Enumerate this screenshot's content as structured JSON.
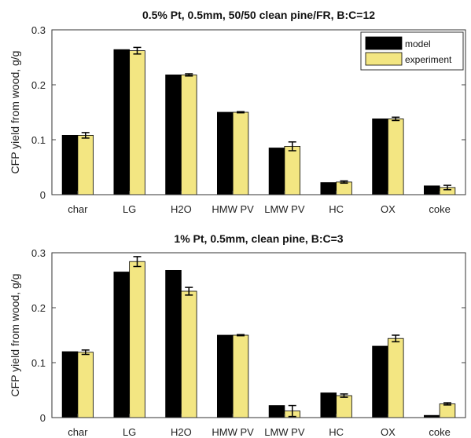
{
  "chart_data": [
    {
      "type": "bar",
      "title": "0.5% Pt, 0.5mm, 50/50 clean pine/FR, B:C=12",
      "ylabel": "CFP yield from wood, g/g",
      "xlabel": "",
      "ylim": [
        0,
        0.3
      ],
      "yticks": [
        "0",
        "0.1",
        "0.2",
        "0.3"
      ],
      "categories": [
        "char",
        "LG",
        "H2O",
        "HMW PV",
        "LMW PV",
        "HC",
        "OX",
        "coke"
      ],
      "legend_position": "top-right",
      "series": [
        {
          "name": "model",
          "color": "#000000",
          "values": [
            0.108,
            0.264,
            0.218,
            0.15,
            0.085,
            0.022,
            0.138,
            0.016
          ]
        },
        {
          "name": "experiment",
          "color": "#f3e682",
          "values": [
            0.108,
            0.262,
            0.218,
            0.15,
            0.088,
            0.023,
            0.138,
            0.013
          ],
          "errors": [
            0.005,
            0.006,
            0.002,
            0.001,
            0.008,
            0.002,
            0.003,
            0.004
          ]
        }
      ]
    },
    {
      "type": "bar",
      "title": "1% Pt, 0.5mm, clean pine, B:C=3",
      "ylabel": "CFP yield from wood, g/g",
      "xlabel": "",
      "ylim": [
        0,
        0.3
      ],
      "yticks": [
        "0",
        "0.1",
        "0.2",
        "0.3"
      ],
      "categories": [
        "char",
        "LG",
        "H2O",
        "HMW PV",
        "LMW PV",
        "HC",
        "OX",
        "coke"
      ],
      "series": [
        {
          "name": "model",
          "color": "#000000",
          "values": [
            0.12,
            0.265,
            0.268,
            0.15,
            0.022,
            0.045,
            0.13,
            0.004
          ]
        },
        {
          "name": "experiment",
          "color": "#f3e682",
          "values": [
            0.119,
            0.284,
            0.23,
            0.15,
            0.012,
            0.04,
            0.144,
            0.025
          ],
          "errors": [
            0.004,
            0.009,
            0.007,
            0.001,
            0.01,
            0.003,
            0.006,
            0.002
          ]
        }
      ]
    }
  ]
}
